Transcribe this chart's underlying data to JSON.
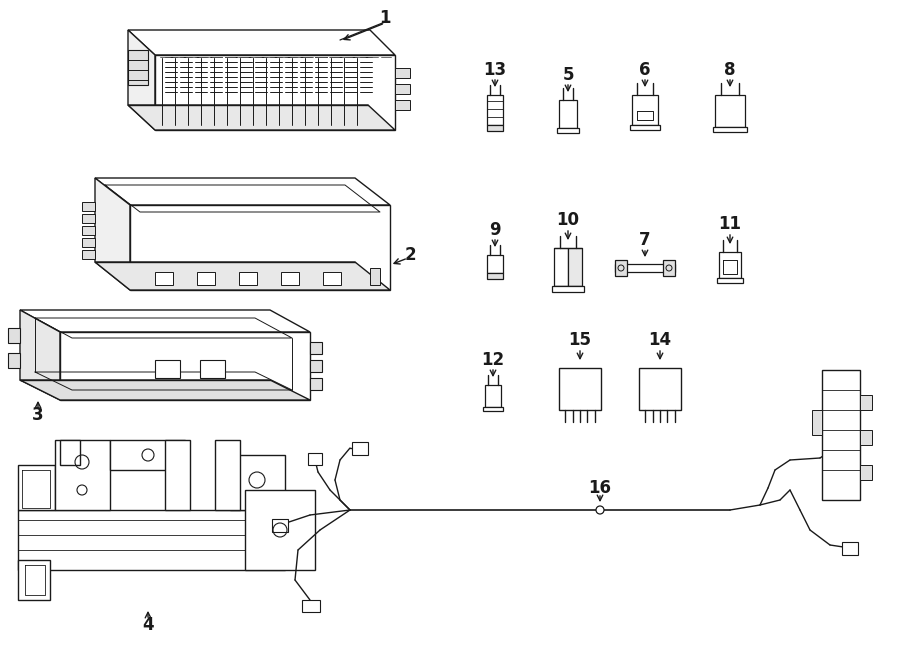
{
  "bg_color": "#ffffff",
  "lc": "#1a1a1a",
  "lw": 1.0,
  "figsize": [
    9.0,
    6.61
  ],
  "dpi": 100
}
